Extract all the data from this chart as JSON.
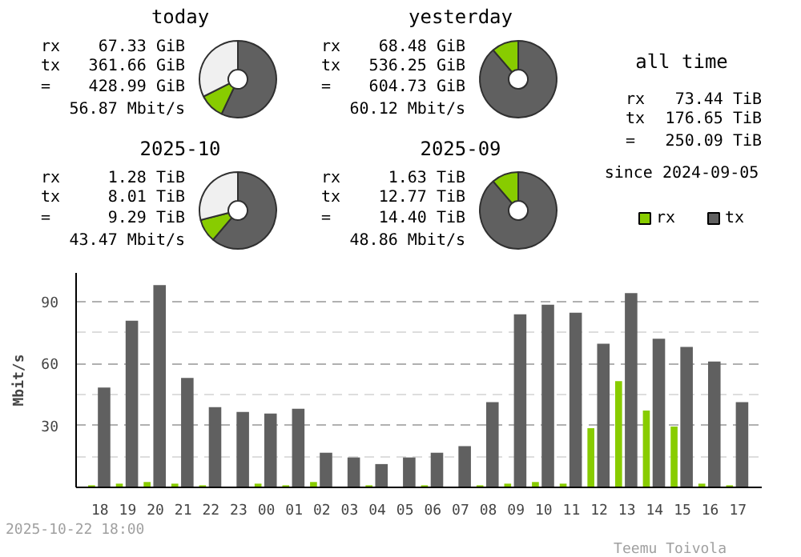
{
  "chart_data": [
    {
      "type": "donut",
      "title": "today",
      "categories": [
        null,
        null,
        null
      ],
      "values": [
        57,
        10.6,
        32.4
      ],
      "colors": [
        "#606060",
        "#88cc00",
        "#f0f0f0"
      ],
      "annotations": [
        "rx 67.33 GiB",
        "tx 361.66 GiB",
        "= 428.99 GiB",
        "56.87 Mbit/s"
      ]
    },
    {
      "type": "donut",
      "title": "yesterday",
      "categories": [
        null,
        null
      ],
      "values": [
        88.7,
        11.3
      ],
      "colors": [
        "#606060",
        "#88cc00"
      ],
      "annotations": [
        "rx 68.48 GiB",
        "tx 536.25 GiB",
        "= 604.73 GiB",
        "60.12 Mbit/s"
      ]
    },
    {
      "type": "donut",
      "title": "2025-10",
      "categories": [
        null,
        null,
        null
      ],
      "values": [
        61.2,
        9.8,
        29
      ],
      "colors": [
        "#606060",
        "#88cc00",
        "#f0f0f0"
      ],
      "annotations": [
        "rx 1.28 TiB",
        "tx 8.01 TiB",
        "= 9.29 TiB",
        "43.47 Mbit/s"
      ]
    },
    {
      "type": "donut",
      "title": "2025-09",
      "categories": [
        null,
        null
      ],
      "values": [
        88.7,
        11.3
      ],
      "colors": [
        "#606060",
        "#88cc00"
      ],
      "annotations": [
        "rx 1.63 TiB",
        "tx 12.77 TiB",
        "= 14.40 TiB",
        "48.86 Mbit/s"
      ]
    },
    {
      "type": "other",
      "title": "all time",
      "categories": [
        "rx",
        "tx"
      ],
      "colors": [
        "#88cc00",
        "#606060"
      ],
      "annotations": [
        "rx 73.44 TiB",
        "tx 176.65 TiB",
        "= 250.09 TiB",
        "since 2024-09-05"
      ]
    },
    {
      "type": "bar",
      "ylabel": "Mbit/s",
      "ylim": [
        0,
        104
      ],
      "yticks": [
        30,
        60,
        90
      ],
      "grid": "y",
      "categories": [
        "18",
        "19",
        "20",
        "21",
        "22",
        "23",
        "00",
        "01",
        "02",
        "03",
        "04",
        "05",
        "06",
        "07",
        "08",
        "09",
        "10",
        "11",
        "12",
        "13",
        "14",
        "15",
        "16",
        "17"
      ],
      "series": [
        {
          "color": "#88cc00",
          "values": [
            1,
            1.8,
            2.6,
            1.8,
            1,
            0,
            1.8,
            1,
            2.6,
            0,
            1,
            0,
            1,
            0,
            1,
            1.8,
            2.6,
            1.8,
            28.7,
            51.5,
            37.3,
            29.5,
            1.8,
            1
          ]
        },
        {
          "color": "#606060",
          "values": [
            48.4,
            80.8,
            98.1,
            53.1,
            38.9,
            36.6,
            35.8,
            38.1,
            16.8,
            14.5,
            11.3,
            14.5,
            16.8,
            20.0,
            41.3,
            83.9,
            88.6,
            84.7,
            69.7,
            94.2,
            72.1,
            68.1,
            61.0,
            41.3
          ]
        }
      ],
      "annotations": [
        "2025-10-22 18:00",
        "Teemu Toivola"
      ]
    }
  ]
}
